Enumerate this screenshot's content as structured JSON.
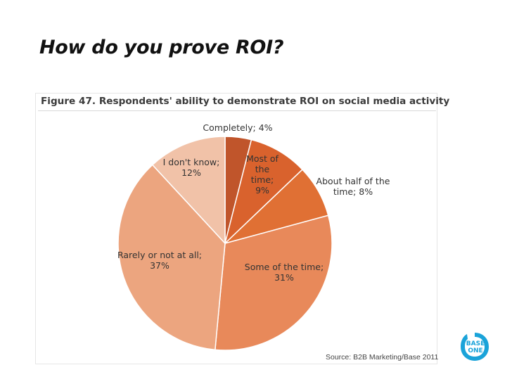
{
  "slide": {
    "title": "How do you prove ROI?"
  },
  "figure": {
    "caption": "Figure 47. Respondents' ability to demonstrate ROI on social media activity",
    "source": "Source: B2B Marketing/Base 2011"
  },
  "logo": {
    "line1": "BASE",
    "line2": "ONE",
    "color": "#1aa3d9"
  },
  "chart_data": {
    "type": "pie",
    "slices": [
      {
        "label_lines": [
          "Completely; 4%"
        ],
        "value": 4,
        "color": "#c0552b"
      },
      {
        "label_lines": [
          "Most of",
          "the",
          "time;",
          "9%"
        ],
        "value": 9,
        "color": "#d9622d"
      },
      {
        "label_lines": [
          "About half of the",
          "time; 8%"
        ],
        "value": 8,
        "color": "#e07034"
      },
      {
        "label_lines": [
          "Some of the time;",
          "31%"
        ],
        "value": 31,
        "color": "#e8895a"
      },
      {
        "label_lines": [
          "Rarely or not at all;",
          "37%"
        ],
        "value": 37,
        "color": "#eca57f"
      },
      {
        "label_lines": [
          "I don't know;",
          "12%"
        ],
        "value": 12,
        "color": "#f1c2a8"
      }
    ]
  }
}
